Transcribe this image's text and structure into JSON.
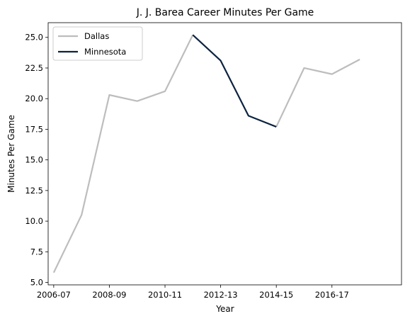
{
  "chart_data": {
    "type": "line",
    "title": "J. J. Barea Career Minutes Per Game",
    "xlabel": "Year",
    "ylabel": "Minutes Per Game",
    "x_ticks": [
      "2006-07",
      "2008-09",
      "2010-11",
      "2012-13",
      "2014-15",
      "2016-17"
    ],
    "y_ticks": [
      "5.0",
      "7.5",
      "10.0",
      "12.5",
      "15.0",
      "17.5",
      "20.0",
      "22.5",
      "25.0"
    ],
    "ylim": [
      4.8,
      26.2
    ],
    "xlim": [
      2005.8,
      2018.5
    ],
    "legend_position": "top-left",
    "series": [
      {
        "name": "Dallas",
        "color": "#bdbdbd",
        "segments": [
          {
            "x": [
              2006,
              2007,
              2008,
              2009,
              2010,
              2011
            ],
            "y": [
              5.8,
              10.5,
              20.3,
              19.8,
              20.6,
              25.2
            ]
          },
          {
            "x": [
              2014,
              2015,
              2016,
              2017
            ],
            "y": [
              17.7,
              22.5,
              22.0,
              23.2
            ]
          }
        ]
      },
      {
        "name": "Minnesota",
        "color": "#0c2340",
        "segments": [
          {
            "x": [
              2011,
              2012,
              2013,
              2014
            ],
            "y": [
              25.2,
              23.1,
              18.6,
              17.7
            ]
          }
        ]
      }
    ]
  }
}
